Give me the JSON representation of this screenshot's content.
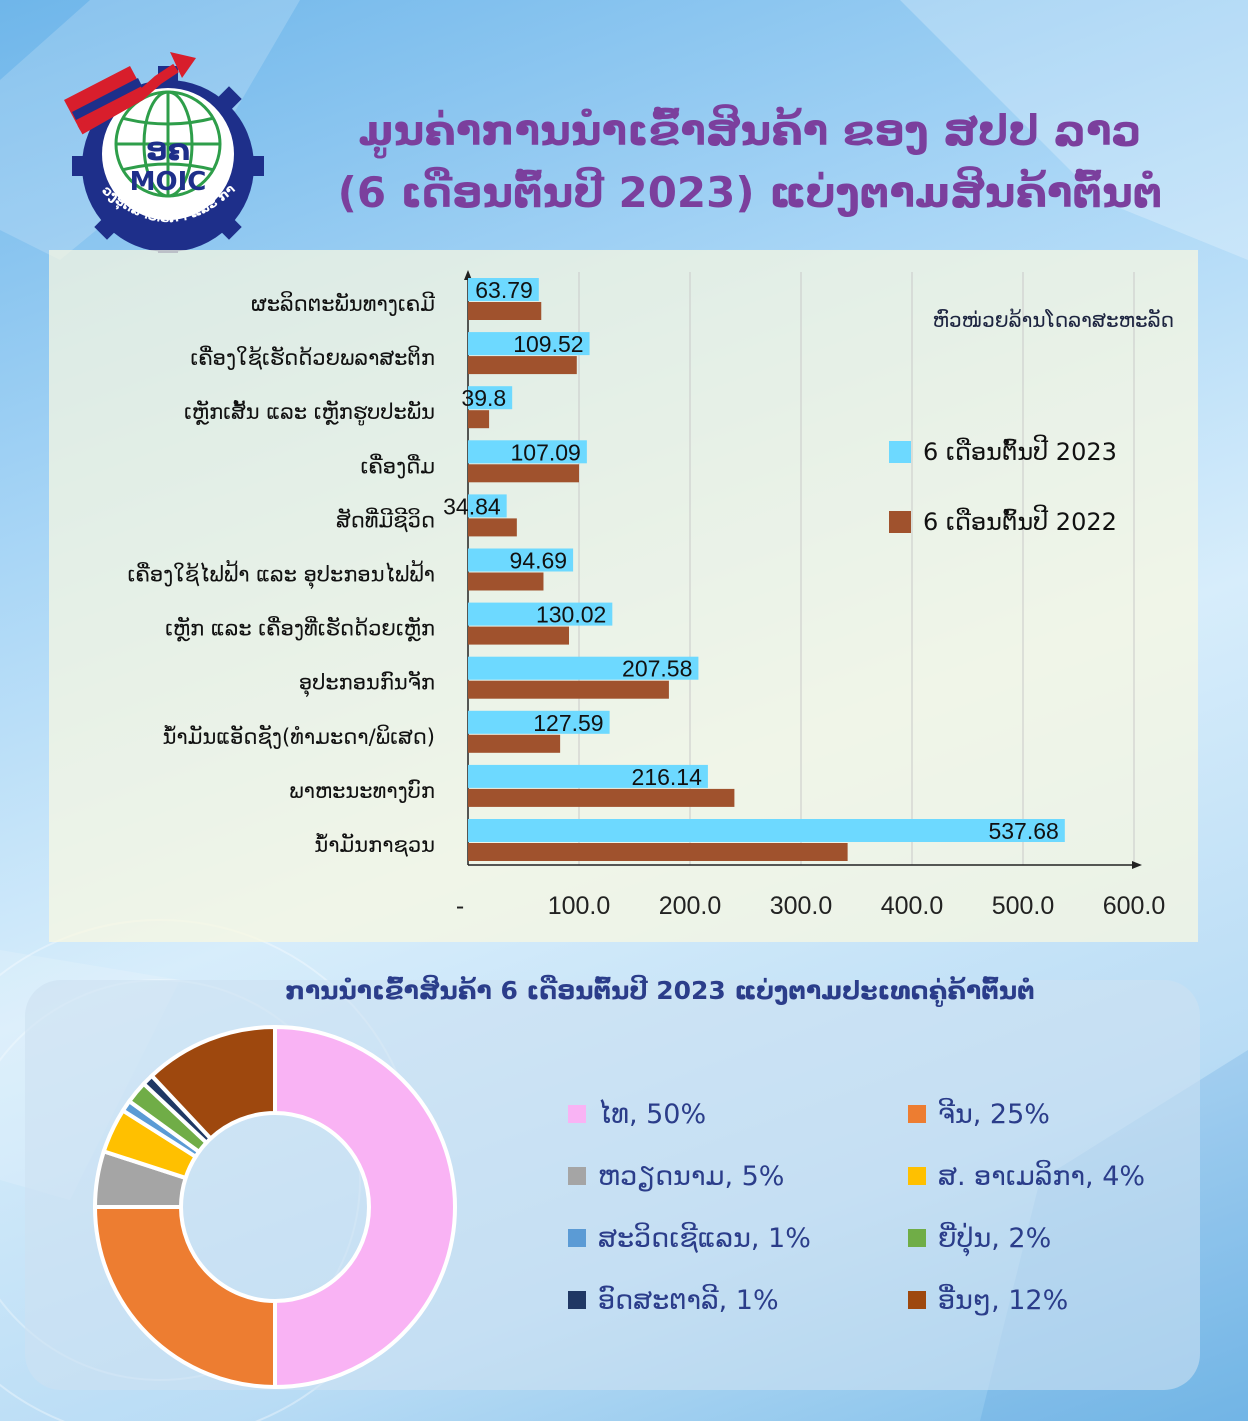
{
  "title": {
    "line1": "ມູນຄ່າການນໍາເຂົ້າສິນຄ້າ ຂອງ ສປປ ລາວ",
    "line2": "(6 ເດືອນຕົ້ນປີ 2023) ແບ່ງຕາມສິນຄ້າຕົ້ນຕໍ"
  },
  "logo": {
    "abbr_lao": "ອຄ",
    "abbr_en": "MOIC",
    "ring_text": "ກະຊວງອຸດສາຫະກຳ ແລະ ການຄ້າ"
  },
  "colors": {
    "series_2023": "#6dd9ff",
    "series_2022": "#a0522d",
    "title": "#7b3f9d"
  },
  "chart_data": [
    {
      "type": "bar",
      "orientation": "horizontal",
      "unit": "ຫົວໜ່ວຍລ້ານໂດລາສະຫະລັດ",
      "categories": [
        "ຜະລິດຕະພັນທາງເຄມີ",
        "ເຄື່ອງໃຊ້ເຮັດດ້ວຍພລາສະຕິກ",
        "ເຫຼັກເສັ້ນ ແລະ ເຫຼັກຮູບປະພັນ",
        "ເຄື່ອງດື່ມ",
        "ສັດທີ່ມີຊີວິດ",
        "ເຄື່ອງໃຊ້ໄຟຟ້າ ແລະ ອຸປະກອນໄຟຟ້າ",
        "ເຫຼັກ ແລະ ເຄື່ອງທີ່ເຮັດດ້ວຍເຫຼັກ",
        "ອຸປະກອນກົນຈັກ",
        "ນ້ຳມັນແອັດຊັງ(ທຳມະດາ/ພິເສດ)",
        "ພາຫະນະທາງບົກ",
        "ນ້ຳມັນກາຊວນ"
      ],
      "series": [
        {
          "name": "6 ເດືອນຕົ້ນປີ 2023",
          "values": [
            63.79,
            109.52,
            39.8,
            107.09,
            34.84,
            94.69,
            130.02,
            207.58,
            127.59,
            216.14,
            537.68
          ],
          "labels": [
            "63.79",
            "109.52",
            "39.8",
            "107.09",
            "34.84",
            "94.69",
            "130.02",
            "207.58",
            "127.59",
            "216.14",
            "537.68"
          ]
        },
        {
          "name": "6 ເດືອນຕົ້ນປີ 2022",
          "values": [
            66,
            98,
            19,
            100,
            44,
            68,
            91,
            181,
            83,
            240,
            342
          ]
        }
      ],
      "xlim": [
        0,
        600
      ],
      "xticks": [
        0,
        100,
        200,
        300,
        400,
        500,
        600
      ],
      "xtick_labels": [
        "-",
        "100.0",
        "200.0",
        "300.0",
        "400.0",
        "500.0",
        "600.0"
      ],
      "grid": "vertical",
      "legend": "right"
    },
    {
      "type": "pie",
      "style": "donut",
      "title": "ການນໍາເຂົ້າສິນຄ້າ 6 ເດືອນຕົ້ນປີ 2023 ແບ່ງຕາມປະເທດຄູ່ຄ້າຕົ້ນຕໍ",
      "slices": [
        {
          "label": "ໄທ, 50%",
          "value": 50,
          "color": "#f9b3f4"
        },
        {
          "label": "ຈີນ, 25%",
          "value": 25,
          "color": "#ed7d31"
        },
        {
          "label": "ຫວຽດນາມ, 5%",
          "value": 5,
          "color": "#a5a5a5"
        },
        {
          "label": "ສ. ອາເມລິກາ, 4%",
          "value": 4,
          "color": "#ffc000"
        },
        {
          "label": "ສະວິດເຊີແລນ, 1%",
          "value": 1,
          "color": "#5b9bd5"
        },
        {
          "label": "ຍີ່ປຸ່ນ, 2%",
          "value": 2,
          "color": "#70ad47"
        },
        {
          "label": "ອົດສະຕາລີ, 1%",
          "value": 1,
          "color": "#203864"
        },
        {
          "label": "ອື່ນໆ, 12%",
          "value": 12,
          "color": "#9e480e"
        }
      ],
      "legend": "right"
    }
  ]
}
